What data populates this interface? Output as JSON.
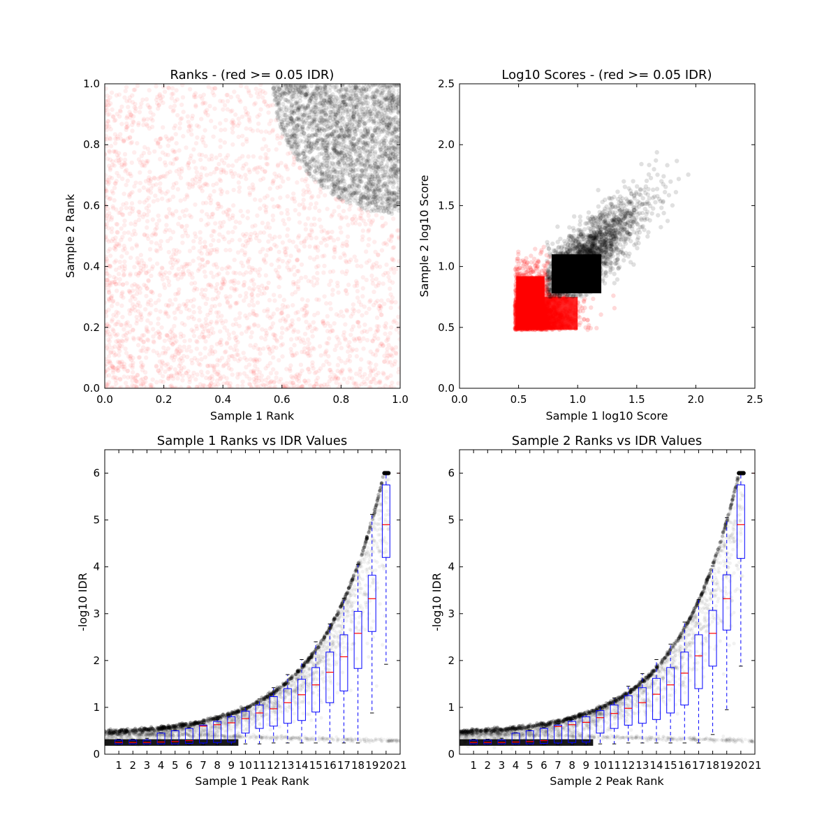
{
  "chart_data": [
    {
      "type": "scatter",
      "title": "Ranks - (red >= 0.05 IDR)",
      "xlabel": "Sample 1 Rank",
      "ylabel": "Sample 2 Rank",
      "xlim": [
        0.0,
        1.0
      ],
      "ylim": [
        0.0,
        1.0
      ],
      "xticks": [
        "0.0",
        "0.2",
        "0.4",
        "0.6",
        "0.8",
        "1.0"
      ],
      "yticks": [
        "0.0",
        "0.2",
        "0.4",
        "0.6",
        "0.8",
        "1.0"
      ],
      "grid": false,
      "colors": {
        "low_idr": "#ff0000",
        "high_idr": "#000000"
      },
      "series": [
        {
          "points_approx": 2600,
          "region": "x,y in [0,1]; outside quarter circle centred (1,1) radius 0.43"
        },
        {
          "points_approx": 2200,
          "region": "inside quarter circle centred (1,1) radius 0.43, x >= 0.56, y >= 0.56"
        }
      ]
    },
    {
      "type": "scatter",
      "title": "Log10 Scores - (red >= 0.05 IDR)",
      "xlabel": "Sample 1 log10 Score",
      "ylabel": "Sample 2 log10 Score",
      "xlim": [
        0.0,
        2.5
      ],
      "ylim": [
        0.0,
        2.5
      ],
      "xticks": [
        "0.0",
        "0.5",
        "1.0",
        "1.5",
        "2.0",
        "2.5"
      ],
      "yticks": [
        "0.0",
        "0.5",
        "1.0",
        "1.5",
        "2.0",
        "2.5"
      ],
      "grid": false,
      "colors": {
        "low_idr": "#ff0000",
        "high_idr": "#000000"
      },
      "series": [
        {
          "points_approx": 2400,
          "x_range": [
            0.46,
            1.45
          ],
          "y_range": [
            0.47,
            1.36
          ]
        },
        {
          "points_approx": 2200,
          "x_range": [
            0.74,
            2.03
          ],
          "y_range": [
            0.75,
            2.02
          ]
        }
      ]
    },
    {
      "type": "box",
      "title": "Sample 1 Ranks vs IDR Values",
      "xlabel": "Sample 1 Peak Rank",
      "ylabel": "-log10 IDR",
      "xlim": [
        0,
        21
      ],
      "ylim": [
        0,
        6.5
      ],
      "xticks": [
        "1",
        "2",
        "3",
        "4",
        "5",
        "6",
        "7",
        "8",
        "9",
        "10",
        "11",
        "12",
        "13",
        "14",
        "15",
        "16",
        "17",
        "18",
        "19",
        "20",
        "21"
      ],
      "yticks": [
        "0",
        "1",
        "2",
        "3",
        "4",
        "5",
        "6"
      ],
      "grid": false,
      "colors": {
        "box": "#0000ff",
        "median": "#ff0000",
        "points": "#000000"
      },
      "boxes": [
        {
          "x": 1,
          "q1": 0.22,
          "median": 0.25,
          "q3": 0.3,
          "whislo": 0.2,
          "whishi": 0.32
        },
        {
          "x": 2,
          "q1": 0.22,
          "median": 0.25,
          "q3": 0.3,
          "whislo": 0.2,
          "whishi": 0.32
        },
        {
          "x": 3,
          "q1": 0.22,
          "median": 0.25,
          "q3": 0.3,
          "whislo": 0.2,
          "whishi": 0.34
        },
        {
          "x": 4,
          "q1": 0.22,
          "median": 0.26,
          "q3": 0.45,
          "whislo": 0.2,
          "whishi": 0.46
        },
        {
          "x": 5,
          "q1": 0.22,
          "median": 0.27,
          "q3": 0.5,
          "whislo": 0.2,
          "whishi": 0.52
        },
        {
          "x": 6,
          "q1": 0.23,
          "median": 0.29,
          "q3": 0.55,
          "whislo": 0.2,
          "whishi": 0.57
        },
        {
          "x": 7,
          "q1": 0.24,
          "median": 0.6,
          "q3": 0.62,
          "whislo": 0.2,
          "whishi": 0.65
        },
        {
          "x": 8,
          "q1": 0.25,
          "median": 0.63,
          "q3": 0.7,
          "whislo": 0.2,
          "whishi": 0.74
        },
        {
          "x": 9,
          "q1": 0.26,
          "median": 0.67,
          "q3": 0.8,
          "whislo": 0.2,
          "whishi": 0.85
        },
        {
          "x": 10,
          "q1": 0.45,
          "median": 0.76,
          "q3": 0.92,
          "whislo": 0.22,
          "whishi": 1.0
        },
        {
          "x": 11,
          "q1": 0.55,
          "median": 0.88,
          "q3": 1.05,
          "whislo": 0.22,
          "whishi": 1.18
        },
        {
          "x": 12,
          "q1": 0.6,
          "median": 0.97,
          "q3": 1.23,
          "whislo": 0.24,
          "whishi": 1.42
        },
        {
          "x": 13,
          "q1": 0.66,
          "median": 1.1,
          "q3": 1.4,
          "whislo": 0.24,
          "whishi": 1.7
        },
        {
          "x": 14,
          "q1": 0.72,
          "median": 1.27,
          "q3": 1.6,
          "whislo": 0.24,
          "whishi": 2.02
        },
        {
          "x": 15,
          "q1": 0.9,
          "median": 1.48,
          "q3": 1.85,
          "whislo": 0.24,
          "whishi": 2.4
        },
        {
          "x": 16,
          "q1": 1.1,
          "median": 1.75,
          "q3": 2.18,
          "whislo": 0.24,
          "whishi": 2.78
        },
        {
          "x": 17,
          "q1": 1.35,
          "median": 2.08,
          "q3": 2.55,
          "whislo": 0.24,
          "whishi": 3.33
        },
        {
          "x": 18,
          "q1": 1.83,
          "median": 2.58,
          "q3": 3.05,
          "whislo": 0.24,
          "whishi": 4.05
        },
        {
          "x": 19,
          "q1": 2.62,
          "median": 3.32,
          "q3": 3.82,
          "whislo": 0.88,
          "whishi": 5.12
        },
        {
          "x": 20,
          "q1": 4.2,
          "median": 4.9,
          "q3": 5.75,
          "whislo": 1.92,
          "whishi": 6.0
        }
      ]
    },
    {
      "type": "box",
      "title": "Sample 2 Ranks vs IDR Values",
      "xlabel": "Sample 2 Peak Rank",
      "ylabel": "-log10 IDR",
      "xlim": [
        0,
        21
      ],
      "ylim": [
        0,
        6.5
      ],
      "xticks": [
        "1",
        "2",
        "3",
        "4",
        "5",
        "6",
        "7",
        "8",
        "9",
        "10",
        "11",
        "12",
        "13",
        "14",
        "15",
        "16",
        "17",
        "18",
        "19",
        "20",
        "21"
      ],
      "yticks": [
        "0",
        "1",
        "2",
        "3",
        "4",
        "5",
        "6"
      ],
      "grid": false,
      "colors": {
        "box": "#0000ff",
        "median": "#ff0000",
        "points": "#000000"
      },
      "boxes": [
        {
          "x": 1,
          "q1": 0.22,
          "median": 0.25,
          "q3": 0.3,
          "whislo": 0.2,
          "whishi": 0.32
        },
        {
          "x": 2,
          "q1": 0.22,
          "median": 0.25,
          "q3": 0.3,
          "whislo": 0.2,
          "whishi": 0.32
        },
        {
          "x": 3,
          "q1": 0.22,
          "median": 0.25,
          "q3": 0.3,
          "whislo": 0.2,
          "whishi": 0.34
        },
        {
          "x": 4,
          "q1": 0.22,
          "median": 0.26,
          "q3": 0.45,
          "whislo": 0.2,
          "whishi": 0.46
        },
        {
          "x": 5,
          "q1": 0.22,
          "median": 0.27,
          "q3": 0.5,
          "whislo": 0.2,
          "whishi": 0.52
        },
        {
          "x": 6,
          "q1": 0.23,
          "median": 0.29,
          "q3": 0.55,
          "whislo": 0.2,
          "whishi": 0.57
        },
        {
          "x": 7,
          "q1": 0.24,
          "median": 0.59,
          "q3": 0.62,
          "whislo": 0.2,
          "whishi": 0.65
        },
        {
          "x": 8,
          "q1": 0.25,
          "median": 0.63,
          "q3": 0.7,
          "whislo": 0.2,
          "whishi": 0.74
        },
        {
          "x": 9,
          "q1": 0.26,
          "median": 0.68,
          "q3": 0.8,
          "whislo": 0.2,
          "whishi": 0.85
        },
        {
          "x": 10,
          "q1": 0.45,
          "median": 0.78,
          "q3": 0.93,
          "whislo": 0.22,
          "whishi": 1.0
        },
        {
          "x": 11,
          "q1": 0.55,
          "median": 0.87,
          "q3": 1.05,
          "whislo": 0.22,
          "whishi": 1.2
        },
        {
          "x": 12,
          "q1": 0.62,
          "median": 0.98,
          "q3": 1.25,
          "whislo": 0.24,
          "whishi": 1.45
        },
        {
          "x": 13,
          "q1": 0.66,
          "median": 1.1,
          "q3": 1.42,
          "whislo": 0.24,
          "whishi": 1.72
        },
        {
          "x": 14,
          "q1": 0.74,
          "median": 1.28,
          "q3": 1.62,
          "whislo": 0.24,
          "whishi": 2.02
        },
        {
          "x": 15,
          "q1": 0.88,
          "median": 1.48,
          "q3": 1.85,
          "whislo": 0.24,
          "whishi": 2.35
        },
        {
          "x": 16,
          "q1": 1.05,
          "median": 1.73,
          "q3": 2.18,
          "whislo": 0.24,
          "whishi": 2.82
        },
        {
          "x": 17,
          "q1": 1.4,
          "median": 2.1,
          "q3": 2.55,
          "whislo": 0.24,
          "whishi": 3.3
        },
        {
          "x": 18,
          "q1": 1.88,
          "median": 2.58,
          "q3": 3.07,
          "whislo": 0.42,
          "whishi": 4.02
        },
        {
          "x": 19,
          "q1": 2.65,
          "median": 3.32,
          "q3": 3.83,
          "whislo": 0.95,
          "whishi": 5.05
        },
        {
          "x": 20,
          "q1": 4.18,
          "median": 4.9,
          "q3": 5.75,
          "whislo": 1.88,
          "whishi": 6.0
        }
      ]
    }
  ]
}
